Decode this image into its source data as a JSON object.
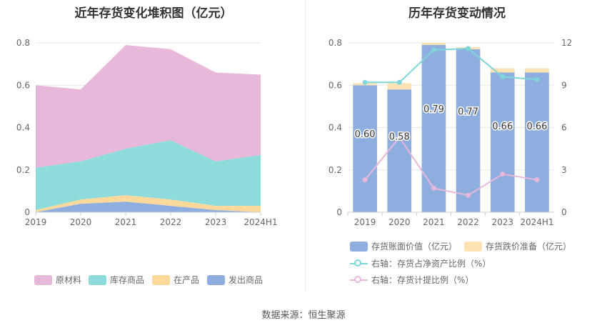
{
  "left_chart": {
    "title": "近年存货变化堆积图（亿元）",
    "legend": [
      {
        "label": "原材料",
        "color": "#e8b8da"
      },
      {
        "label": "库存商品",
        "color": "#8ddbdb"
      },
      {
        "label": "在产品",
        "color": "#fcd99a"
      },
      {
        "label": "发出商品",
        "color": "#8faee0"
      }
    ]
  },
  "right_chart": {
    "title": "历年存货变动情况",
    "legend": [
      {
        "label": "存货账面价值（亿元）",
        "color": "#8faee0",
        "kind": "bar"
      },
      {
        "label": "存货跌价准备（亿元）",
        "color": "#fde3b4",
        "kind": "bar"
      },
      {
        "label": "右轴：存货占净资产比例（%）",
        "color": "#7ed6d9",
        "kind": "line"
      },
      {
        "label": "右轴：存货计提比例（%）",
        "color": "#e8b8da",
        "kind": "line"
      }
    ]
  },
  "source": "数据来源：恒生聚源",
  "chart_data": [
    {
      "type": "area",
      "stacked": true,
      "title": "近年存货变化堆积图（亿元）",
      "categories": [
        "2019",
        "2020",
        "2021",
        "2022",
        "2023",
        "2024H1"
      ],
      "ylim": [
        0,
        0.8
      ],
      "yticks": [
        0,
        0.2,
        0.4,
        0.6,
        0.8
      ],
      "grid": true,
      "legend_position": "bottom",
      "series": [
        {
          "name": "发出商品",
          "color": "#8faee0",
          "values": [
            0.0,
            0.04,
            0.05,
            0.03,
            0.01,
            0.0
          ]
        },
        {
          "name": "在产品",
          "color": "#fcd99a",
          "values": [
            0.01,
            0.02,
            0.03,
            0.03,
            0.02,
            0.03
          ]
        },
        {
          "name": "库存商品",
          "color": "#8ddbdb",
          "values": [
            0.2,
            0.18,
            0.22,
            0.28,
            0.21,
            0.24
          ]
        },
        {
          "name": "原材料",
          "color": "#e8b8da",
          "values": [
            0.39,
            0.34,
            0.49,
            0.43,
            0.42,
            0.38
          ]
        }
      ]
    },
    {
      "type": "bar",
      "stacked": true,
      "title": "历年存货变动情况",
      "categories": [
        "2019",
        "2020",
        "2021",
        "2022",
        "2023",
        "2024H1"
      ],
      "ylim": [
        0,
        0.8
      ],
      "yticks": [
        0,
        0.2,
        0.4,
        0.6,
        0.8
      ],
      "y2lim": [
        0,
        12
      ],
      "y2ticks": [
        0,
        3,
        6,
        9,
        12
      ],
      "grid": true,
      "legend_position": "bottom",
      "series": [
        {
          "name": "存货账面价值（亿元）",
          "color": "#8faee0",
          "axis": "left",
          "kind": "bar",
          "values": [
            0.6,
            0.58,
            0.79,
            0.77,
            0.66,
            0.66
          ],
          "labels": [
            "0.60",
            "0.58",
            "0.79",
            "0.77",
            "0.66",
            "0.66"
          ]
        },
        {
          "name": "存货跌价准备（亿元）",
          "color": "#fde3b4",
          "axis": "left",
          "kind": "bar",
          "values": [
            0.01,
            0.03,
            0.01,
            0.01,
            0.02,
            0.02
          ]
        },
        {
          "name": "右轴：存货占净资产比例（%）",
          "color": "#7ed6d9",
          "axis": "right",
          "kind": "line",
          "values": [
            9.2,
            9.2,
            11.5,
            11.6,
            9.6,
            9.4
          ]
        },
        {
          "name": "右轴：存货计提比例（%）",
          "color": "#e8b8da",
          "axis": "right",
          "kind": "line",
          "values": [
            2.3,
            5.3,
            1.7,
            1.2,
            2.7,
            2.3
          ]
        }
      ]
    }
  ]
}
